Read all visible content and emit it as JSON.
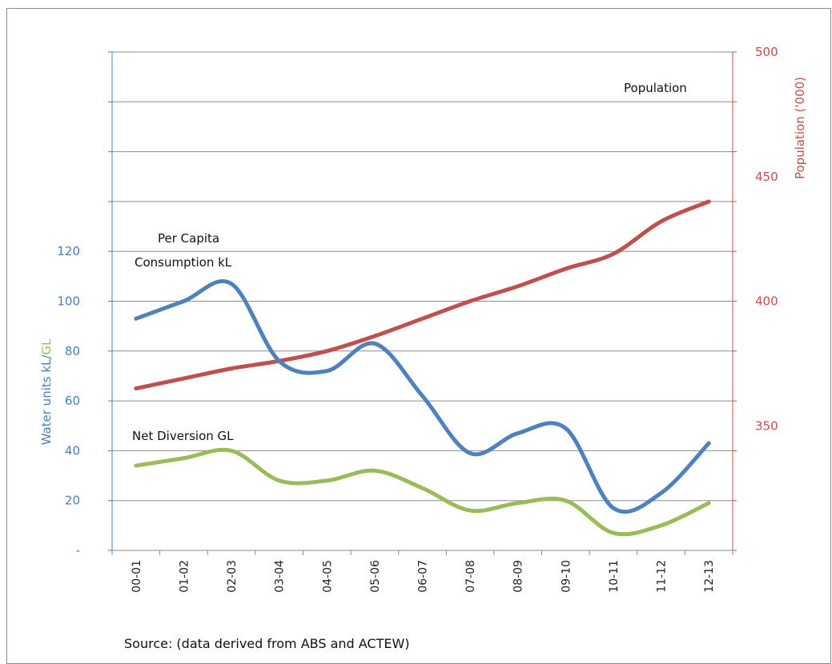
{
  "chart_data": {
    "type": "line",
    "categories": [
      "00-01",
      "01-02",
      "02-03",
      "03-04",
      "04-05",
      "05-06",
      "06-07",
      "07-08",
      "08-09",
      "09-10",
      "10-11",
      "11-12",
      "12-13"
    ],
    "left_axis": {
      "label_part1": "Water units kL/",
      "label_part2": "GL",
      "ticks": [
        "-",
        "20",
        "40",
        "60",
        "80",
        "100",
        "120"
      ],
      "range": [
        0,
        200
      ],
      "color_part1": "#4a7ebb",
      "color_part2": "#9bbb59"
    },
    "right_axis": {
      "label": "Population ('000)",
      "ticks": [
        "350",
        "400",
        "450",
        "500"
      ],
      "range": [
        300,
        500
      ],
      "color": "#c0504d"
    },
    "series": [
      {
        "name": "Population",
        "axis": "right",
        "color": "#c0504d",
        "values": [
          365,
          369,
          373,
          376,
          380,
          386,
          393,
          400,
          406,
          413,
          419,
          432,
          440
        ]
      },
      {
        "name": "Per Capita Consumption kL",
        "axis": "left",
        "color": "#4f81bd",
        "values": [
          93,
          100,
          107,
          76,
          72,
          83,
          62,
          39,
          47,
          49,
          17,
          23,
          43
        ]
      },
      {
        "name": "Net Diversion GL",
        "axis": "left",
        "color": "#9bbb59",
        "values": [
          34,
          37,
          40,
          28,
          28,
          32,
          25,
          16,
          19,
          20,
          7,
          10,
          19
        ]
      }
    ],
    "annotations": {
      "population": "Population",
      "per_capita_line1": "Per Capita",
      "per_capita_line2": "Consumption kL",
      "net_diversion": "Net Diversion GL"
    },
    "grid": true
  },
  "source_text": "Source: (data derived from ABS and ACTEW)"
}
